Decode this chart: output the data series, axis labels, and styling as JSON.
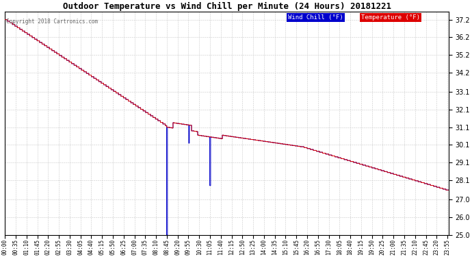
{
  "title": "Outdoor Temperature vs Wind Chill per Minute (24 Hours) 20181221",
  "copyright": "Copyright 2018 Cartronics.com",
  "legend_wind_chill": "Wind Chill (°F)",
  "legend_temperature": "Temperature (°F)",
  "ylim": [
    25.0,
    37.65
  ],
  "yticks": [
    25.0,
    26.0,
    27.0,
    28.1,
    29.1,
    30.1,
    31.1,
    32.1,
    33.1,
    34.2,
    35.2,
    36.2,
    37.2
  ],
  "bg_color": "#ffffff",
  "grid_color": "#c8c8c8",
  "temp_color": "#dd0000",
  "wind_chill_color": "#0000cc",
  "num_minutes": 1440,
  "tick_interval": 35,
  "fig_width": 6.9,
  "fig_height": 3.75,
  "fig_dpi": 100
}
